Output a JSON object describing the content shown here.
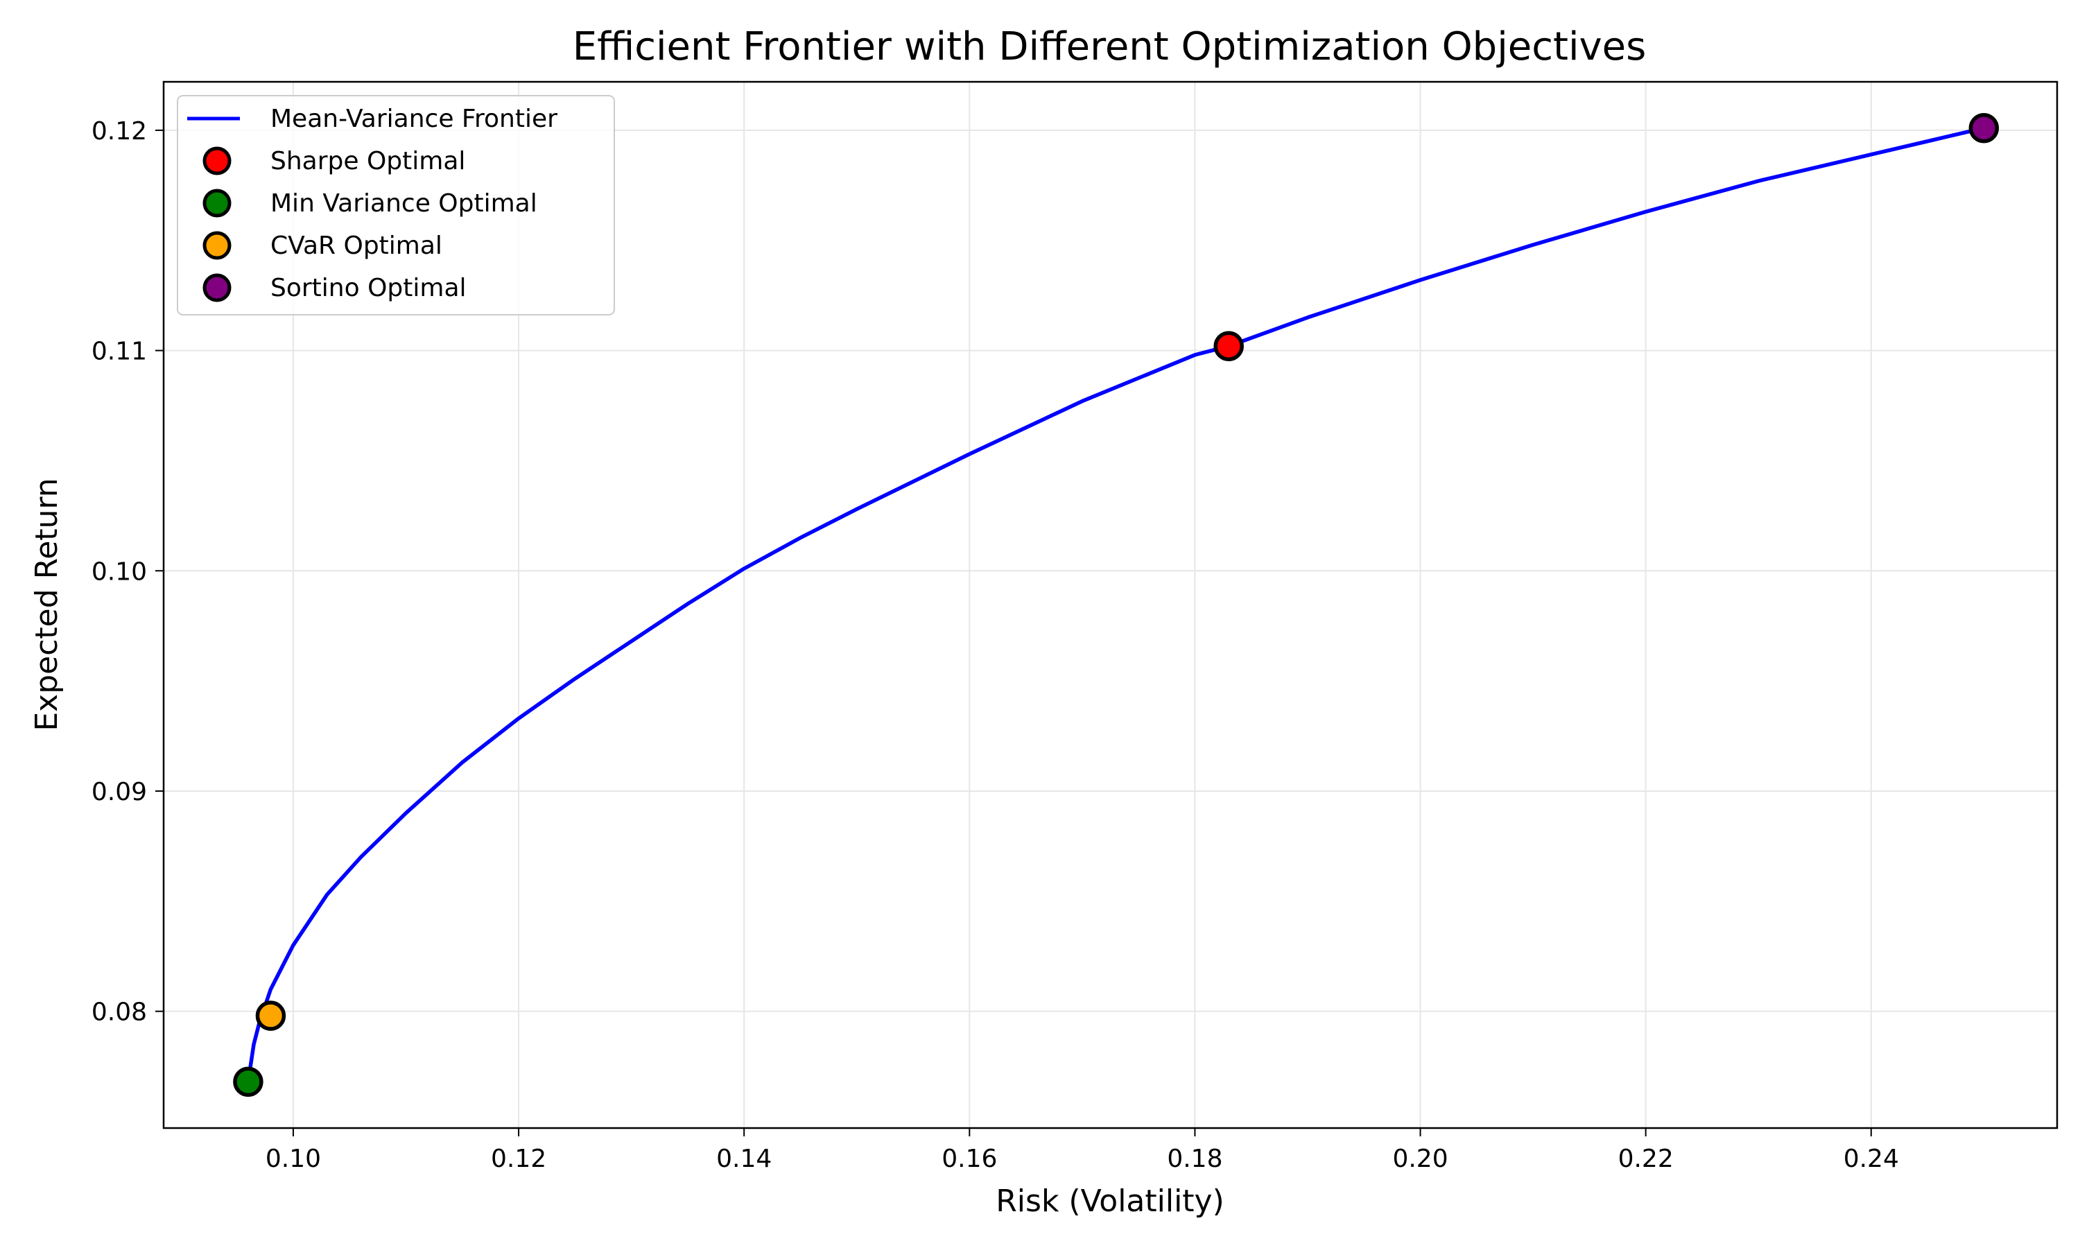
{
  "chart_data": {
    "type": "line",
    "title": "Efficient Frontier with Different Optimization Objectives",
    "xlabel": "Risk (Volatility)",
    "ylabel": "Expected Return",
    "xlim": [
      0.0885,
      0.2565
    ],
    "ylim": [
      0.0747,
      0.1222
    ],
    "x_ticks": [
      0.1,
      0.12,
      0.14,
      0.16,
      0.18,
      0.2,
      0.22,
      0.24
    ],
    "x_tick_labels": [
      "0.10",
      "0.12",
      "0.14",
      "0.16",
      "0.18",
      "0.20",
      "0.22",
      "0.24"
    ],
    "y_ticks": [
      0.08,
      0.09,
      0.1,
      0.11,
      0.12
    ],
    "y_tick_labels": [
      "0.08",
      "0.09",
      "0.10",
      "0.11",
      "0.12"
    ],
    "grid": true,
    "legend_position": "top-left",
    "series": [
      {
        "name": "Mean-Variance Frontier",
        "kind": "line",
        "color": "#0000ff",
        "x": [
          0.096,
          0.0965,
          0.097,
          0.098,
          0.1,
          0.103,
          0.106,
          0.11,
          0.115,
          0.12,
          0.125,
          0.13,
          0.135,
          0.14,
          0.145,
          0.15,
          0.16,
          0.17,
          0.18,
          0.183,
          0.19,
          0.2,
          0.21,
          0.22,
          0.23,
          0.24,
          0.25
        ],
        "y": [
          0.0768,
          0.0785,
          0.0795,
          0.081,
          0.083,
          0.0853,
          0.087,
          0.089,
          0.0913,
          0.0933,
          0.0951,
          0.0968,
          0.0985,
          0.1001,
          0.1015,
          0.1028,
          0.1053,
          0.1077,
          0.1098,
          0.1102,
          0.1115,
          0.1132,
          0.1148,
          0.1163,
          0.1177,
          0.1189,
          0.1201
        ]
      },
      {
        "name": "Sharpe Optimal",
        "kind": "scatter",
        "color": "#ff0000",
        "x": [
          0.183
        ],
        "y": [
          0.1102
        ]
      },
      {
        "name": "Min Variance Optimal",
        "kind": "scatter",
        "color": "#008000",
        "x": [
          0.096
        ],
        "y": [
          0.0768
        ]
      },
      {
        "name": "CVaR Optimal",
        "kind": "scatter",
        "color": "#ffa500",
        "x": [
          0.098
        ],
        "y": [
          0.0798
        ]
      },
      {
        "name": "Sortino Optimal",
        "kind": "scatter",
        "color": "#800080",
        "x": [
          0.25
        ],
        "y": [
          0.1201
        ]
      }
    ]
  }
}
